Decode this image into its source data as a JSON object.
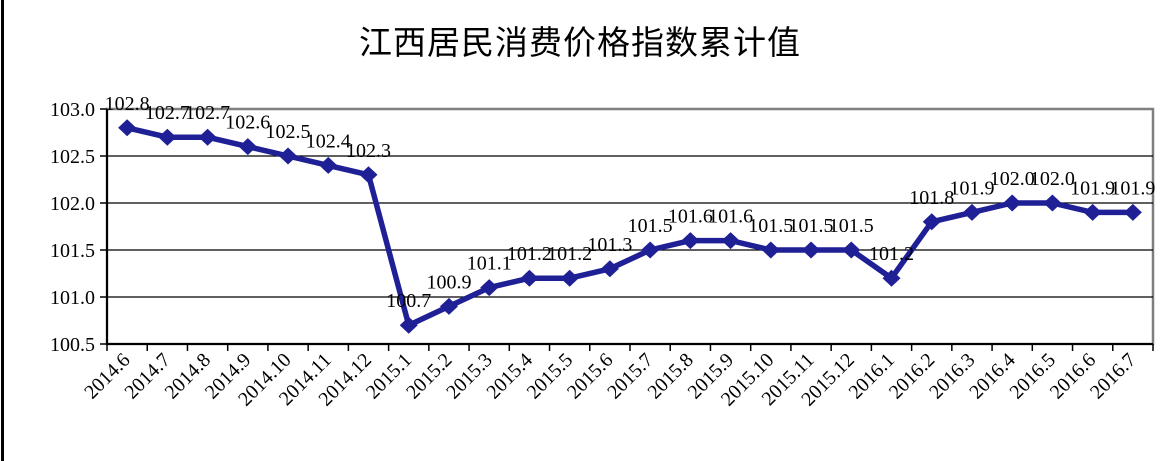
{
  "page": {
    "background_color": "#ffffff",
    "left_border_color": "#000000"
  },
  "chart_data": {
    "type": "line",
    "title": "江西居民消费价格指数累计值",
    "categories": [
      "2014.6",
      "2014.7",
      "2014.8",
      "2014.9",
      "2014.10",
      "2014.11",
      "2014.12",
      "2015.1",
      "2015.2",
      "2015.3",
      "2015.4",
      "2015.5",
      "2015.6",
      "2015.7",
      "2015.8",
      "2015.9",
      "2015.10",
      "2015.11",
      "2015.12",
      "2016.1",
      "2016.2",
      "2016.3",
      "2016.4",
      "2016.5",
      "2016.6",
      "2016.7"
    ],
    "series": [
      {
        "name": "累计值",
        "values": [
          102.8,
          102.7,
          102.7,
          102.6,
          102.5,
          102.4,
          102.3,
          100.7,
          100.9,
          101.1,
          101.2,
          101.2,
          101.3,
          101.5,
          101.6,
          101.6,
          101.5,
          101.5,
          101.5,
          101.2,
          101.8,
          101.9,
          102.0,
          102.0,
          101.9,
          101.9
        ],
        "point_labels": [
          "102.8",
          "102.7",
          "102.7",
          "102.6",
          "102.5",
          "102.4",
          "102.3",
          "100.7",
          "100.9",
          "101.1",
          "101.2",
          "101.2",
          "101.3",
          "101.5",
          "101.6",
          "101.6",
          "101.5",
          "101.5",
          "101.5",
          "101.2",
          "101.8",
          "101.9",
          "102.0",
          "102.0",
          "101.9",
          "101.9"
        ],
        "color": "#1F1F96",
        "marker": "diamond"
      }
    ],
    "xlabel": "",
    "ylabel": "",
    "ylim": [
      100.5,
      103.0
    ],
    "ytick_step": 0.5,
    "ytick_labels": [
      "103.0",
      "102.5",
      "102.0",
      "101.5",
      "101.0",
      "100.5"
    ],
    "grid": true,
    "legend_position": "none",
    "data_labels": true,
    "x_label_rotation_deg": 45,
    "colors": {
      "plot_border": "#7F7F7F",
      "axis": "#000000",
      "gridline": "#000000",
      "text": "#000000",
      "plot_background": "#ffffff"
    }
  }
}
